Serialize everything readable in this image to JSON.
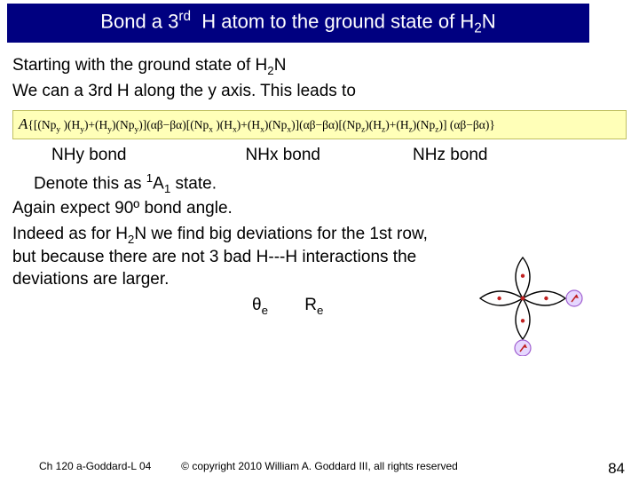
{
  "title_html": "Bond a 3<span class='sup'>rd</span>&nbsp; H atom to the ground state of H<span class='sub'>2</span>N",
  "line1_html": "Starting with the ground state of H<span class='sub'>2</span>N",
  "line2_html": "We can a 3rd H along the y axis. This leads to",
  "formula_html": "<span class='cal-a'>A</span>{[(Np<span class='sub'>y</span> )(H<span class='sub'>y</span>)+(H<span class='sub'>y</span>)(Np<span class='sub'>y</span>)](&alpha;&beta;&minus;&beta;&alpha;)[(Np<span class='sub'>x</span> )(H<span class='sub'>x</span>)+(H<span class='sub'>x</span>)(Np<span class='sub'>x</span>)](&alpha;&beta;&minus;&beta;&alpha;)[(Np<span class='sub'>z</span>)(H<span class='sub'>z</span>)+(H<span class='sub'>z</span>)(Np<span class='sub'>z</span>)] (&alpha;&beta;&minus;&beta;&alpha;)}",
  "bond_labels": [
    "NHy bond",
    "NHx bond",
    "NHz bond"
  ],
  "denote_html": "Denote this as <span class='sup'>1</span>A<span class='sub'>1</span> state.",
  "para_again": "Again expect 90º bond angle.",
  "para_indeed_html": "Indeed as for H<span class='sub'>2</span>N we find big deviations for the 1st row, but because there are not 3 bad H---H interactions the deviations are larger.",
  "theta_html": "&theta;<span class='sub'>e</span>",
  "re_html": "R<span class='sub'>e</span>",
  "footer_left": "Ch 120 a-Goddard-L 04",
  "footer_center": "© copyright 2010 William A. Goddard III, all rights reserved",
  "page_number": "84",
  "diagram": {
    "lobe_fill": "#ffffff",
    "lobe_stroke": "#000000",
    "h_fill": "#e6d8ff",
    "h_stroke": "#a060d0",
    "dot_fill": "#c02020",
    "arrow_fill": "#c02020"
  }
}
